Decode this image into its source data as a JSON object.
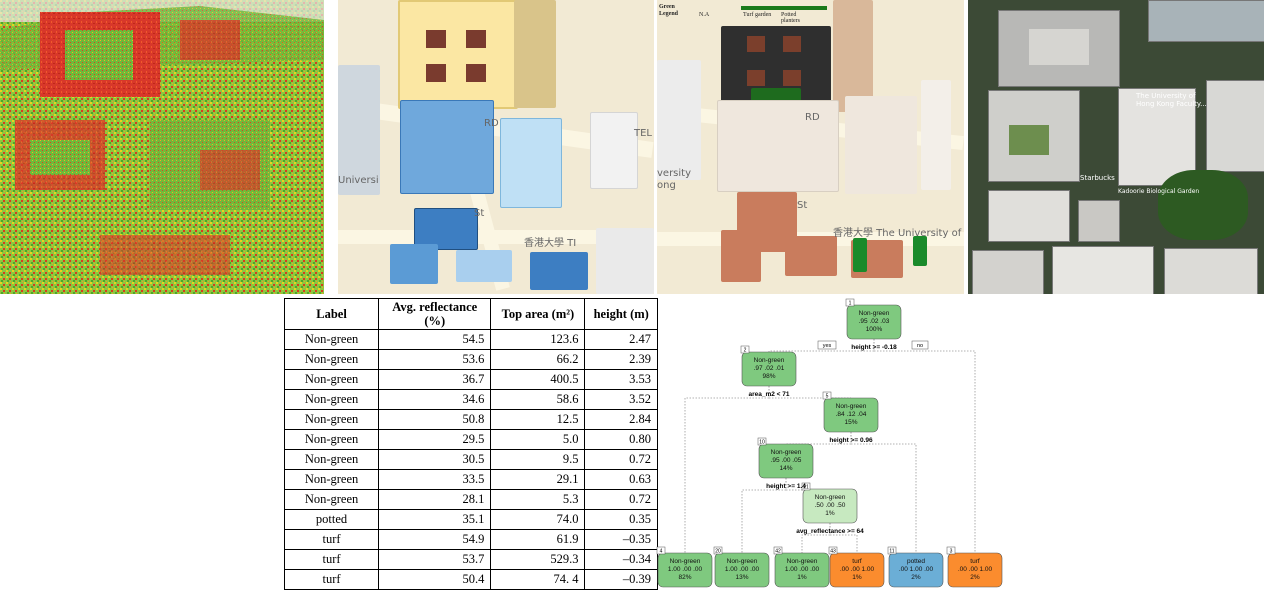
{
  "map_labels": {
    "rd": "RD",
    "tel": "TEL",
    "st": "St",
    "university": "香港大學 The University of Hong",
    "university_short": "The Univ",
    "hku_short": "香港大學 TI",
    "versity": "versity",
    "ong": "ong",
    "univ_left": "Universi"
  },
  "legend": {
    "title": "Green Legend",
    "na": "N.A",
    "turf": "Turf garden",
    "potted": "Potted planters"
  },
  "aerial_labels": {
    "hku": "The University of Hong Kong Faculty...",
    "starbucks": "Starbucks",
    "garden": "Kadoorie Biological Garden"
  },
  "colors": {
    "green_node": "#7fc97f",
    "light_green_node": "#c7e9c0",
    "turf_node": "#fb8c2e",
    "potted_node": "#6baed6",
    "turf_bar": "#1a7a1a",
    "potted_bar": "#4caf50"
  },
  "table": {
    "headers": [
      "Label",
      "Avg. reflectance (%)",
      "Top area (m²)",
      "height (m)"
    ],
    "rows": [
      [
        "Non-green",
        "54.5",
        "123.6",
        "2.47"
      ],
      [
        "Non-green",
        "53.6",
        "66.2",
        "2.39"
      ],
      [
        "Non-green",
        "36.7",
        "400.5",
        "3.53"
      ],
      [
        "Non-green",
        "34.6",
        "58.6",
        "3.52"
      ],
      [
        "Non-green",
        "50.8",
        "12.5",
        "2.84"
      ],
      [
        "Non-green",
        "29.5",
        "5.0",
        "0.80"
      ],
      [
        "Non-green",
        "30.5",
        "9.5",
        "0.72"
      ],
      [
        "Non-green",
        "33.5",
        "29.1",
        "0.63"
      ],
      [
        "Non-green",
        "28.1",
        "5.3",
        "0.72"
      ],
      [
        "potted",
        "35.1",
        "74.0",
        "0.35"
      ],
      [
        "turf",
        "54.9",
        "61.9",
        "–0.35"
      ],
      [
        "turf",
        "53.7",
        "529.3",
        "–0.34"
      ],
      [
        "turf",
        "50.4",
        "74. 4",
        "–0.39"
      ]
    ]
  },
  "tree": {
    "nodes": [
      {
        "id": "1",
        "cls": "Non-green",
        "probs": ".95 .02 .03",
        "pct": "100%",
        "color": "green"
      },
      {
        "id": "2",
        "cls": "Non-green",
        "probs": ".97 .02 .01",
        "pct": "98%",
        "color": "green"
      },
      {
        "id": "5",
        "cls": "Non-green",
        "probs": ".84 .12 .04",
        "pct": "15%",
        "color": "green"
      },
      {
        "id": "10",
        "cls": "Non-green",
        "probs": ".95 .00 .05",
        "pct": "14%",
        "color": "green"
      },
      {
        "id": "21",
        "cls": "Non-green",
        "probs": ".50 .00 .50",
        "pct": "1%",
        "color": "light"
      },
      {
        "id": "4",
        "cls": "Non-green",
        "probs": "1.00 .00 .00",
        "pct": "82%",
        "color": "green"
      },
      {
        "id": "20",
        "cls": "Non-green",
        "probs": "1.00 .00 .00",
        "pct": "13%",
        "color": "green"
      },
      {
        "id": "42",
        "cls": "Non-green",
        "probs": "1.00 .00 .00",
        "pct": "1%",
        "color": "green"
      },
      {
        "id": "43",
        "cls": "turf",
        "probs": ".00 .00 1.00",
        "pct": "1%",
        "color": "turf"
      },
      {
        "id": "11",
        "cls": "potted",
        "probs": ".00 1.00 .00",
        "pct": "2%",
        "color": "potted"
      },
      {
        "id": "3",
        "cls": "turf",
        "probs": ".00 .00 1.00",
        "pct": "2%",
        "color": "turf"
      }
    ],
    "splits": [
      {
        "id": "s1",
        "text": "height >= -0.18",
        "yes": "yes",
        "no": "no"
      },
      {
        "id": "s2",
        "text": "area_m2 < 71"
      },
      {
        "id": "s5",
        "text": "height >= 0.96"
      },
      {
        "id": "s10",
        "text": "height >= 1.4"
      },
      {
        "id": "s21",
        "text": "avg_reflectance >= 64"
      }
    ]
  }
}
